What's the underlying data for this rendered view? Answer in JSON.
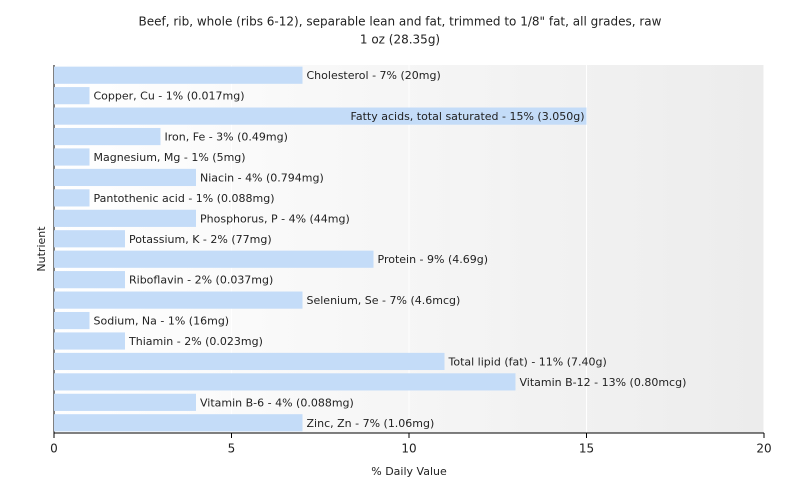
{
  "chart_data": {
    "type": "barh",
    "title": "Beef, rib, whole (ribs 6-12), separable lean and fat, trimmed to 1/8\" fat, all grades, raw",
    "subtitle": "1 oz (28.35g)",
    "x_label": "% Daily Value",
    "y_label": "Nutrient",
    "categories": [
      "Cholesterol",
      "Copper, Cu",
      "Fatty acids, total saturated",
      "Iron, Fe",
      "Magnesium, Mg",
      "Niacin",
      "Pantothenic acid",
      "Phosphorus, P",
      "Potassium, K",
      "Protein",
      "Riboflavin",
      "Selenium, Se",
      "Sodium, Na",
      "Thiamin",
      "Total lipid (fat)",
      "Vitamin B-12",
      "Vitamin B-6",
      "Zinc, Zn"
    ],
    "values": [
      7,
      1,
      15,
      3,
      1,
      4,
      1,
      4,
      2,
      9,
      2,
      7,
      1,
      2,
      11,
      13,
      4,
      7
    ],
    "value_labels": [
      "Cholesterol - 7% (20mg)",
      "Copper, Cu - 1% (0.017mg)",
      "Fatty acids, total saturated - 15% (3.050g)",
      "Iron, Fe - 3% (0.49mg)",
      "Magnesium, Mg - 1% (5mg)",
      "Niacin - 4% (0.794mg)",
      "Pantothenic acid - 1% (0.088mg)",
      "Phosphorus, P - 4% (44mg)",
      "Potassium, K - 2% (77mg)",
      "Protein - 9% (4.69g)",
      "Riboflavin - 2% (0.037mg)",
      "Selenium, Se - 7% (4.6mcg)",
      "Sodium, Na - 1% (16mg)",
      "Thiamin - 2% (0.023mg)",
      "Total lipid (fat) - 11% (7.40g)",
      "Vitamin B-12 - 13% (0.80mcg)",
      "Vitamin B-6 - 4% (0.088mg)",
      "Zinc, Zn - 7% (1.06mg)"
    ],
    "color": "#c4dcf8",
    "xlim": [
      0,
      20
    ],
    "xticks": [
      0,
      5,
      10,
      15,
      20
    ],
    "grid": true
  }
}
